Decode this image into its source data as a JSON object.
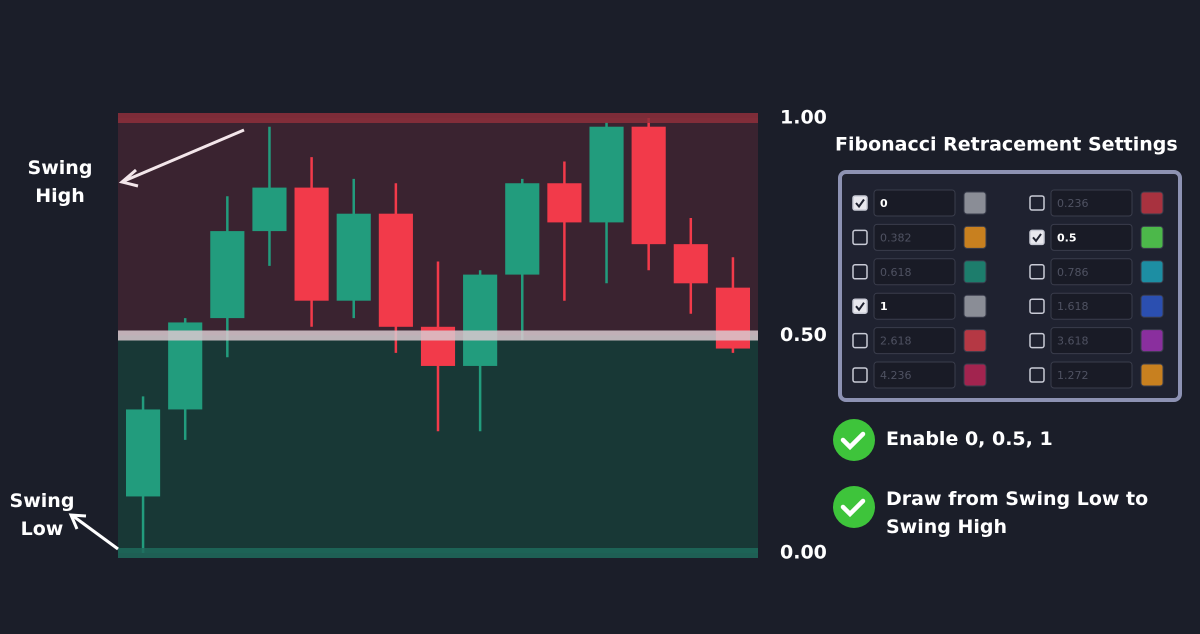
{
  "chart_data": {
    "type": "candlestick",
    "ylim": [
      0,
      1
    ],
    "yticks": [
      {
        "value": 1,
        "label": "1.00"
      },
      {
        "value": 0.5,
        "label": "0.50"
      },
      {
        "value": 0,
        "label": "0.00"
      }
    ],
    "level_colors": [
      "#8e2f3b",
      "#d9c9cf",
      "#1f6b5c"
    ],
    "zone_colors": [
      "#183836",
      "#3a2330"
    ],
    "up_color": "#229c7d",
    "down_color": "#f23a4a",
    "open": [
      0.13,
      0.33,
      0.54,
      0.74,
      0.84,
      0.58,
      0.78,
      0.52,
      0.43,
      0.64,
      0.85,
      0.76,
      0.98,
      0.71,
      0.61
    ],
    "high": [
      0.36,
      0.54,
      0.82,
      0.98,
      0.91,
      0.86,
      0.85,
      0.67,
      0.65,
      0.86,
      0.9,
      0.99,
      1.0,
      0.77,
      0.68
    ],
    "low": [
      0.0,
      0.26,
      0.45,
      0.66,
      0.52,
      0.54,
      0.46,
      0.28,
      0.28,
      0.49,
      0.58,
      0.62,
      0.65,
      0.55,
      0.46
    ],
    "close": [
      0.33,
      0.53,
      0.74,
      0.84,
      0.58,
      0.78,
      0.52,
      0.43,
      0.64,
      0.85,
      0.76,
      0.98,
      0.71,
      0.62,
      0.47
    ],
    "annotations": [
      "Swing High",
      "Swing Low"
    ]
  },
  "settings": {
    "title": "Fibonacci Retracement Settings",
    "levels": [
      {
        "checked": true,
        "value": "0",
        "color": "#8a8d96"
      },
      {
        "checked": false,
        "value": "0.236",
        "color": "#a8323f"
      },
      {
        "checked": false,
        "value": "0.382",
        "color": "#c8801f"
      },
      {
        "checked": true,
        "value": "0.5",
        "color": "#4cb84a"
      },
      {
        "checked": false,
        "value": "0.618",
        "color": "#1d7d6c"
      },
      {
        "checked": false,
        "value": "0.786",
        "color": "#1d8ea3"
      },
      {
        "checked": true,
        "value": "1",
        "color": "#8a8d96"
      },
      {
        "checked": false,
        "value": "1.618",
        "color": "#2b4fb0"
      },
      {
        "checked": false,
        "value": "2.618",
        "color": "#b53844"
      },
      {
        "checked": false,
        "value": "3.618",
        "color": "#8a2f9e"
      },
      {
        "checked": false,
        "value": "4.236",
        "color": "#a2244f"
      },
      {
        "checked": false,
        "value": "1.272",
        "color": "#c8801f"
      }
    ]
  },
  "checklist": [
    "Enable 0, 0.5, 1",
    "Draw from Swing Low to Swing High"
  ]
}
